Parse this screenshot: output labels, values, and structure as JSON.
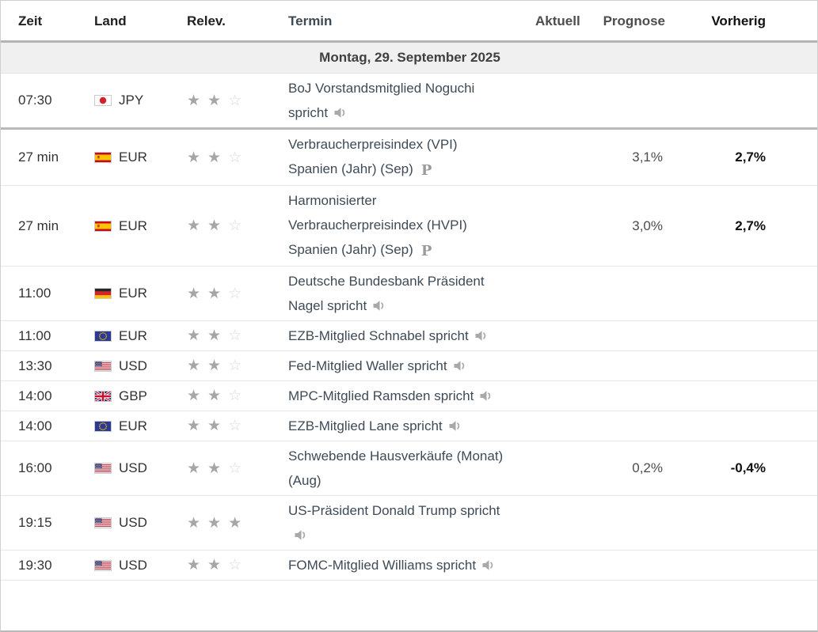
{
  "table": {
    "headers": {
      "zeit": "Zeit",
      "land": "Land",
      "relev": "Relev.",
      "termin": "Termin",
      "aktuell": "Aktuell",
      "prognose": "Prognose",
      "vorherig": "Vorherig"
    },
    "date_header": "Montag, 29. September 2025",
    "rows": [
      {
        "time": "07:30",
        "flag": "japan",
        "currency": "JPY",
        "stars": 2,
        "event": "BoJ Vorstandsmitglied Noguchi spricht",
        "speech": true,
        "preliminary": false,
        "actual": "",
        "forecast": "",
        "previous": "",
        "past": true
      },
      {
        "time": "27 min",
        "flag": "spain",
        "currency": "EUR",
        "stars": 2,
        "event": "Verbraucherpreisindex (VPI) Spanien (Jahr) (Sep)",
        "speech": false,
        "preliminary": true,
        "actual": "",
        "forecast": "3,1%",
        "previous": "2,7%",
        "past": false
      },
      {
        "time": "27 min",
        "flag": "spain",
        "currency": "EUR",
        "stars": 2,
        "event": "Harmonisierter Verbraucherpreisindex (HVPI) Spanien (Jahr) (Sep)",
        "speech": false,
        "preliminary": true,
        "actual": "",
        "forecast": "3,0%",
        "previous": "2,7%",
        "past": false
      },
      {
        "time": "11:00",
        "flag": "germany",
        "currency": "EUR",
        "stars": 2,
        "event": "Deutsche Bundesbank Präsident Nagel spricht",
        "speech": true,
        "preliminary": false,
        "actual": "",
        "forecast": "",
        "previous": "",
        "past": false
      },
      {
        "time": "11:00",
        "flag": "eu",
        "currency": "EUR",
        "stars": 2,
        "event": "EZB-Mitglied Schnabel spricht",
        "speech": true,
        "preliminary": false,
        "actual": "",
        "forecast": "",
        "previous": "",
        "past": false
      },
      {
        "time": "13:30",
        "flag": "us",
        "currency": "USD",
        "stars": 2,
        "event": "Fed-Mitglied Waller spricht",
        "speech": true,
        "preliminary": false,
        "actual": "",
        "forecast": "",
        "previous": "",
        "past": false
      },
      {
        "time": "14:00",
        "flag": "uk",
        "currency": "GBP",
        "stars": 2,
        "event": "MPC-Mitglied Ramsden spricht",
        "speech": true,
        "preliminary": false,
        "actual": "",
        "forecast": "",
        "previous": "",
        "past": false
      },
      {
        "time": "14:00",
        "flag": "eu",
        "currency": "EUR",
        "stars": 2,
        "event": "EZB-Mitglied Lane spricht",
        "speech": true,
        "preliminary": false,
        "actual": "",
        "forecast": "",
        "previous": "",
        "past": false
      },
      {
        "time": "16:00",
        "flag": "us",
        "currency": "USD",
        "stars": 2,
        "event": "Schwebende Hausverkäufe (Monat) (Aug)",
        "speech": false,
        "preliminary": false,
        "actual": "",
        "forecast": "0,2%",
        "previous": "-0,4%",
        "past": false
      },
      {
        "time": "19:15",
        "flag": "us",
        "currency": "USD",
        "stars": 3,
        "event": "US-Präsident Donald Trump spricht",
        "speech": true,
        "preliminary": false,
        "actual": "",
        "forecast": "",
        "previous": "",
        "past": false
      },
      {
        "time": "19:30",
        "flag": "us",
        "currency": "USD",
        "stars": 2,
        "event": "FOMC-Mitglied Williams spricht",
        "speech": true,
        "preliminary": false,
        "actual": "",
        "forecast": "",
        "previous": "",
        "past": false
      }
    ]
  },
  "icons": {
    "speech": "speaker-icon",
    "preliminary": "preliminary-p-icon",
    "preliminary_label": "P",
    "star_filled": "star-filled-icon",
    "star_empty": "star-empty-icon"
  },
  "colors": {
    "header_divider": "#b3b3b3",
    "past_divider": "#b9b9b9",
    "row_divider": "#e6e6e6",
    "date_row_bg": "#f0f0f0",
    "star_filled": "#a6a6a6",
    "star_empty": "#d9d9d9",
    "event_text": "#3e4a56",
    "previous_value": "#111111",
    "forecast_value": "#4d4d4d"
  }
}
